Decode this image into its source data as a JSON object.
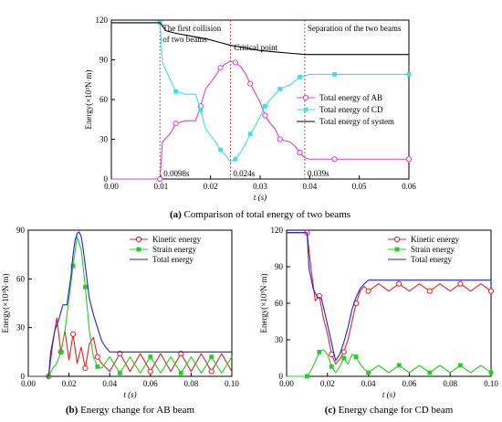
{
  "colors": {
    "ab_total": "#e040c8",
    "cd_total": "#3fe0e8",
    "system": "#000000",
    "kinetic": "#e82020",
    "strain": "#22d022",
    "total": "#2020e0",
    "critical_line": "#e03030"
  },
  "chart_data": [
    {
      "type": "line",
      "caption_tag": "(a)",
      "caption_text": "Comparison of total energy of two beams",
      "xlabel": "t (s)",
      "ylabel": "Energy(×10³N·m)",
      "xlim": [
        0,
        0.06
      ],
      "ylim": [
        0,
        120
      ],
      "xticks": [
        "0.00",
        "0.01",
        "0.02",
        "0.03",
        "0.04",
        "0.05",
        "0.06"
      ],
      "yticks": [
        "0",
        "30",
        "60",
        "90",
        "120"
      ],
      "legend": "right-middle",
      "annotations": [
        {
          "text": "The first collision",
          "x": 0.0098
        },
        {
          "text": "of two beams",
          "x": 0.0098
        },
        {
          "text": "Critical point",
          "x": 0.024
        },
        {
          "text": "Separation of the two beams",
          "x": 0.039
        },
        {
          "text": "0.0098s",
          "x": 0.0098
        },
        {
          "text": "0.024s",
          "x": 0.024
        },
        {
          "text": "0.039s",
          "x": 0.039
        }
      ],
      "vlines": [
        0.0098,
        0.024,
        0.039
      ],
      "series": [
        {
          "name": "Total energy of AB",
          "color_key": "ab_total",
          "marker": "open-circle",
          "x": [
            0,
            0.0098,
            0.0103,
            0.012,
            0.013,
            0.015,
            0.017,
            0.018,
            0.019,
            0.021,
            0.022,
            0.023,
            0.024,
            0.025,
            0.026,
            0.027,
            0.028,
            0.029,
            0.03,
            0.031,
            0.032,
            0.033,
            0.034,
            0.036,
            0.037,
            0.038,
            0.039,
            0.04,
            0.045,
            0.05,
            0.055,
            0.06
          ],
          "y": [
            0,
            0,
            28,
            35,
            42,
            44,
            44,
            55,
            68,
            78,
            84,
            87,
            89,
            88,
            85,
            80,
            72,
            65,
            58,
            48,
            42,
            38,
            30,
            28,
            25,
            20,
            16,
            15,
            15,
            15,
            15,
            15
          ]
        },
        {
          "name": "Total energy of CD",
          "color_key": "cd_total",
          "marker": "filled-square",
          "x": [
            0,
            0.0098,
            0.0103,
            0.012,
            0.013,
            0.015,
            0.017,
            0.018,
            0.019,
            0.021,
            0.022,
            0.023,
            0.024,
            0.025,
            0.026,
            0.027,
            0.028,
            0.029,
            0.03,
            0.031,
            0.032,
            0.033,
            0.034,
            0.036,
            0.037,
            0.038,
            0.039,
            0.04,
            0.045,
            0.05,
            0.055,
            0.06
          ],
          "y": [
            118,
            118,
            88,
            74,
            66,
            64,
            64,
            52,
            38,
            28,
            22,
            18,
            13,
            15,
            20,
            26,
            34,
            40,
            47,
            55,
            60,
            64,
            68,
            71,
            74,
            77,
            78,
            79,
            79,
            79,
            79,
            79
          ]
        },
        {
          "name": "Total energy of system",
          "color_key": "system",
          "marker": "none",
          "x": [
            0,
            0.0098,
            0.011,
            0.013,
            0.016,
            0.019,
            0.022,
            0.024,
            0.027,
            0.03,
            0.033,
            0.036,
            0.039,
            0.045,
            0.05,
            0.055,
            0.06
          ],
          "y": [
            118,
            118,
            112,
            110,
            108,
            106,
            103,
            101,
            99,
            97,
            96,
            95,
            94,
            94,
            94,
            94,
            94
          ]
        }
      ]
    },
    {
      "type": "line",
      "caption_tag": "(b)",
      "caption_text": "Energy change for AB beam",
      "xlabel": "t (s)",
      "ylabel": "Energy(×10³N·m)",
      "xlim": [
        0,
        0.1
      ],
      "ylim": [
        0,
        90
      ],
      "xticks": [
        "0.00",
        "0.02",
        "0.04",
        "0.06",
        "0.08",
        "0.10"
      ],
      "yticks": [
        "0",
        "30",
        "60",
        "90"
      ],
      "legend": "top-right",
      "series": [
        {
          "name": "Kinetic energy",
          "color_key": "kinetic",
          "marker": "open-circle",
          "x": [
            0,
            0.01,
            0.012,
            0.014,
            0.016,
            0.018,
            0.02,
            0.022,
            0.024,
            0.026,
            0.028,
            0.03,
            0.032,
            0.034,
            0.036,
            0.04,
            0.045,
            0.05,
            0.055,
            0.06,
            0.065,
            0.07,
            0.075,
            0.08,
            0.085,
            0.09,
            0.095,
            0.1
          ],
          "y": [
            0,
            0,
            20,
            36,
            15,
            28,
            10,
            26,
            8,
            18,
            5,
            20,
            24,
            12,
            8,
            3,
            14,
            3,
            14,
            3,
            14,
            3,
            14,
            3,
            14,
            3,
            14,
            3
          ]
        },
        {
          "name": "Strain energy",
          "color_key": "strain",
          "marker": "filled-square",
          "x": [
            0,
            0.01,
            0.012,
            0.014,
            0.016,
            0.018,
            0.02,
            0.022,
            0.024,
            0.026,
            0.028,
            0.03,
            0.032,
            0.034,
            0.036,
            0.04,
            0.045,
            0.05,
            0.055,
            0.06,
            0.065,
            0.07,
            0.075,
            0.08,
            0.085,
            0.09,
            0.095,
            0.1
          ],
          "y": [
            0,
            0,
            5,
            8,
            15,
            28,
            48,
            68,
            86,
            78,
            55,
            28,
            12,
            6,
            5,
            12,
            2,
            12,
            2,
            12,
            2,
            12,
            2,
            12,
            2,
            12,
            2,
            12
          ]
        },
        {
          "name": "Total energy",
          "color_key": "total",
          "marker": "none",
          "x": [
            0,
            0.01,
            0.011,
            0.013,
            0.015,
            0.017,
            0.019,
            0.021,
            0.022,
            0.023,
            0.024,
            0.025,
            0.026,
            0.027,
            0.028,
            0.03,
            0.032,
            0.034,
            0.036,
            0.038,
            0.04,
            0.06,
            0.08,
            0.1
          ],
          "y": [
            0,
            0,
            15,
            28,
            35,
            44,
            44,
            62,
            75,
            84,
            88,
            89,
            86,
            78,
            68,
            48,
            38,
            30,
            22,
            18,
            15,
            15,
            15,
            15
          ]
        }
      ]
    },
    {
      "type": "line",
      "caption_tag": "(c)",
      "caption_text": "Energy change for CD beam",
      "xlabel": "t (s)",
      "ylabel": "Energy(×10³N·m)",
      "xlim": [
        0,
        0.1
      ],
      "ylim": [
        0,
        120
      ],
      "xticks": [
        "0.00",
        "0.02",
        "0.04",
        "0.06",
        "0.08",
        "0.10"
      ],
      "yticks": [
        "0",
        "30",
        "60",
        "90",
        "120"
      ],
      "legend": "top-right",
      "series": [
        {
          "name": "Kinetic energy",
          "color_key": "kinetic",
          "marker": "open-circle",
          "x": [
            0,
            0.01,
            0.012,
            0.014,
            0.016,
            0.018,
            0.02,
            0.022,
            0.024,
            0.026,
            0.028,
            0.03,
            0.032,
            0.034,
            0.036,
            0.038,
            0.04,
            0.045,
            0.05,
            0.055,
            0.06,
            0.065,
            0.07,
            0.075,
            0.08,
            0.085,
            0.09,
            0.095,
            0.1
          ],
          "y": [
            118,
            118,
            88,
            62,
            66,
            48,
            35,
            18,
            10,
            14,
            20,
            30,
            45,
            60,
            70,
            74,
            70,
            76,
            70,
            76,
            70,
            76,
            70,
            76,
            70,
            76,
            70,
            76,
            70
          ]
        },
        {
          "name": "Strain energy",
          "color_key": "strain",
          "marker": "filled-square",
          "x": [
            0,
            0.01,
            0.012,
            0.014,
            0.016,
            0.018,
            0.02,
            0.022,
            0.024,
            0.026,
            0.028,
            0.03,
            0.032,
            0.034,
            0.036,
            0.038,
            0.04,
            0.045,
            0.05,
            0.055,
            0.06,
            0.065,
            0.07,
            0.075,
            0.08,
            0.085,
            0.09,
            0.095,
            0.1
          ],
          "y": [
            0,
            0,
            5,
            12,
            20,
            22,
            18,
            8,
            3,
            8,
            15,
            10,
            18,
            16,
            10,
            6,
            3,
            9,
            3,
            9,
            3,
            9,
            3,
            9,
            3,
            9,
            3,
            9,
            3
          ]
        },
        {
          "name": "Total energy",
          "color_key": "total",
          "marker": "none",
          "x": [
            0,
            0.01,
            0.011,
            0.013,
            0.015,
            0.017,
            0.019,
            0.021,
            0.023,
            0.024,
            0.026,
            0.028,
            0.03,
            0.032,
            0.034,
            0.036,
            0.038,
            0.04,
            0.06,
            0.08,
            0.1
          ],
          "y": [
            118,
            118,
            88,
            72,
            65,
            64,
            50,
            35,
            20,
            13,
            18,
            28,
            40,
            55,
            65,
            72,
            76,
            79,
            79,
            79,
            79
          ]
        }
      ]
    }
  ]
}
